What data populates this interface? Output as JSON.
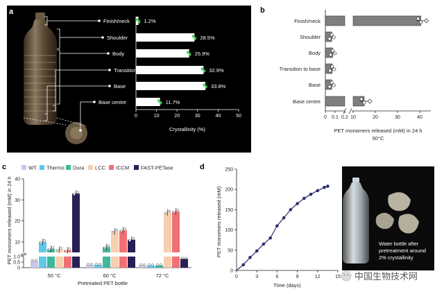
{
  "panels": {
    "a": {
      "label": "a",
      "xlabel": "Crystallinity (%)",
      "xticks": [
        "0",
        "10",
        "20",
        "30",
        "40",
        "50"
      ]
    },
    "b": {
      "label": "b",
      "xlabel_line1": "PET monomers released (mM) in 24 h",
      "xlabel_line2": "50°C",
      "xticks": [
        "0",
        "0.1",
        "0.2",
        "20",
        "30",
        "40",
        "10"
      ]
    },
    "c": {
      "label": "c",
      "ylabel": "PET monomers released (mM) in 24 h",
      "xlabel": "Pretreated PET bottle"
    },
    "d": {
      "label": "d",
      "ylabel": "PET monomers released (mM)",
      "xlabel": "Time (days)",
      "photo_caption": [
        "Water bottle after",
        "pretreatment around",
        "2% crystallinity"
      ]
    }
  },
  "watermark": "中国生物技术网",
  "colors": {
    "black": "#000000",
    "bar_gray": "#7f7f7f",
    "line_purple": "#2b2d6e"
  },
  "chart_data": [
    {
      "id": "a",
      "type": "bar",
      "orientation": "horizontal",
      "categories": [
        "Finish/neck",
        "Shoulder",
        "Body",
        "Transition to base",
        "Base",
        "Base centre"
      ],
      "values": [
        1.2,
        28.5,
        25.9,
        32.9,
        33.8,
        11.7
      ],
      "value_labels": [
        "1.2%",
        "28.5%",
        "25.9%",
        "32.9%",
        "33.8%",
        "11.7%"
      ],
      "xlabel": "Crystallinity (%)",
      "xlim": [
        0,
        50
      ]
    },
    {
      "id": "b",
      "type": "bar",
      "orientation": "horizontal",
      "categories": [
        "Finish/neck",
        "Shoulder",
        "Body",
        "Transition to base",
        "Base",
        "Base centre"
      ],
      "values": [
        40.5,
        0.065,
        0.075,
        0.07,
        0.065,
        15
      ],
      "axis_break": [
        0.2,
        10
      ],
      "xlabel": "PET monomers released (mM) in 24 h, 50°C"
    },
    {
      "id": "c",
      "type": "bar",
      "categories": [
        "50 °C",
        "60 °C",
        "72 °C"
      ],
      "legend": [
        "WT",
        "Thermo",
        "Dura",
        "LCC",
        "ICCM",
        "FAST-PETase"
      ],
      "series_colors": [
        "#c9c6e6",
        "#5ec8e8",
        "#3fb79a",
        "#f7cfae",
        "#f07076",
        "#2a1f55"
      ],
      "series": [
        {
          "name": "WT",
          "values": [
            0.6,
            0.25,
            0.2
          ]
        },
        {
          "name": "Thermo",
          "values": [
            10,
            0.25,
            0.2
          ]
        },
        {
          "name": "Dura",
          "values": [
            6.7,
            7.5,
            0.2
          ]
        },
        {
          "name": "LCC",
          "values": [
            6.3,
            15,
            24
          ]
        },
        {
          "name": "ICCM",
          "values": [
            6,
            15.5,
            24.5
          ]
        },
        {
          "name": "FAST-PETase",
          "values": [
            33,
            11,
            0.8
          ]
        }
      ],
      "yticks": [
        "0",
        "0.5",
        "1.0",
        "10",
        "20",
        "30",
        "40"
      ],
      "ylabel": "PET monomers released (mM) in 24 h",
      "xlabel": "Pretreated PET bottle"
    },
    {
      "id": "d",
      "type": "line",
      "x": [
        0,
        1,
        2,
        3,
        4,
        5,
        6,
        7,
        8,
        9,
        10,
        11,
        12,
        13,
        13.5
      ],
      "y": [
        0,
        14,
        32,
        48,
        65,
        80,
        110,
        130,
        150,
        165,
        178,
        188,
        197,
        205,
        208
      ],
      "xlim": [
        0,
        15
      ],
      "ylim": [
        0,
        250
      ],
      "xticks": [
        "0",
        "3",
        "6",
        "9",
        "12",
        "15"
      ],
      "yticks": [
        "0",
        "50",
        "100",
        "150",
        "200",
        "250"
      ],
      "xlabel": "Time (days)",
      "ylabel": "PET monomers released (mM)"
    }
  ]
}
